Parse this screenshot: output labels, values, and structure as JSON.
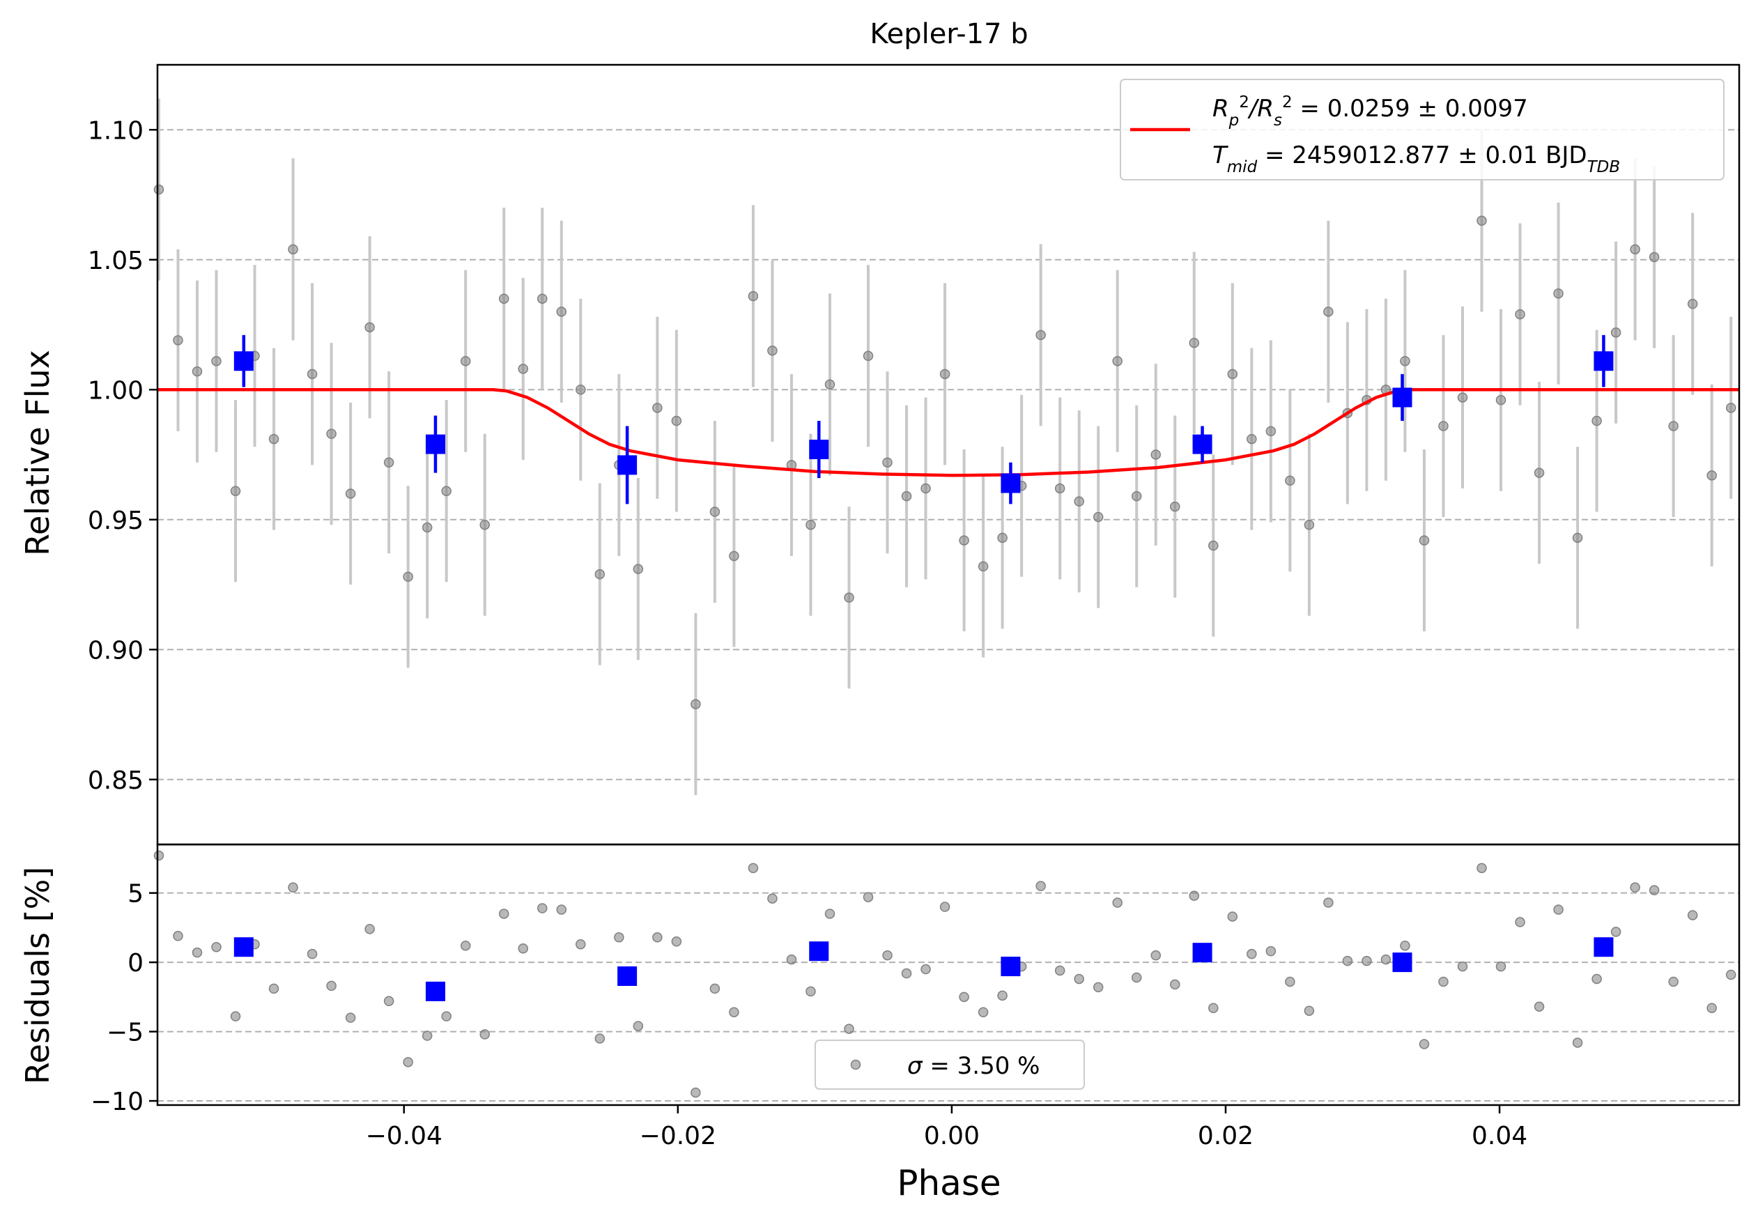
{
  "chart_data": [
    {
      "type": "scatter",
      "title": "Kepler-17 b",
      "xlabel": "",
      "ylabel": "Relative Flux",
      "xlim": [
        -0.058,
        0.0575
      ],
      "ylim": [
        0.825,
        1.125
      ],
      "yticks": [
        0.85,
        0.9,
        0.95,
        1.0,
        1.05,
        1.1
      ],
      "ytick_labels": [
        "0.85",
        "0.90",
        "0.95",
        "1.00",
        "1.05",
        "1.10"
      ],
      "grid": "horizontal dashed",
      "legend_position": "top-right",
      "legend": {
        "line1": {
          "pre": "R",
          "sub1": "p",
          "sup1": "2",
          "mid": "/R",
          "sub2": "s",
          "sup2": "2",
          "post": " = 0.0259 ± 0.0097"
        },
        "line2": {
          "pre": "T",
          "sub1": "mid",
          "mid": " = 2459012.877 ± 0.01 BJD",
          "sub2": "TDB"
        }
      },
      "colors": {
        "data": "#808080",
        "errorbar": "#c8c8c8",
        "binned": "#0000ff",
        "model": "#ff0000",
        "grid": "#b0b0b0"
      },
      "series": [
        {
          "kind": "raw_data_with_errors",
          "x": [
            -0.0579,
            -0.0565,
            -0.0551,
            -0.0537,
            -0.0523,
            -0.0509,
            -0.0495,
            -0.0481,
            -0.0467,
            -0.0453,
            -0.0439,
            -0.0425,
            -0.0411,
            -0.0397,
            -0.0383,
            -0.0369,
            -0.0355,
            -0.0341,
            -0.0327,
            -0.0313,
            -0.0299,
            -0.0285,
            -0.0271,
            -0.0257,
            -0.0243,
            -0.0229,
            -0.0215,
            -0.0201,
            -0.0187,
            -0.0173,
            -0.0159,
            -0.0145,
            -0.0131,
            -0.0117,
            -0.0103,
            -0.0089,
            -0.0075,
            -0.0061,
            -0.0047,
            -0.0033,
            -0.0019,
            -0.0005,
            0.0009,
            0.0023,
            0.0037,
            0.0051,
            0.0065,
            0.0079,
            0.0093,
            0.0107,
            0.0121,
            0.0135,
            0.0149,
            0.0163,
            0.0177,
            0.0191,
            0.0205,
            0.0219,
            0.0233,
            0.0247,
            0.0261,
            0.0275,
            0.0289,
            0.0303,
            0.0317,
            0.0331,
            0.0345,
            0.0359,
            0.0373,
            0.0387,
            0.0401,
            0.0415,
            0.0429,
            0.0443,
            0.0457,
            0.0471,
            0.0485,
            0.0499,
            0.0513,
            0.0527,
            0.0541,
            0.0555,
            0.0569
          ],
          "y": [
            1.077,
            1.019,
            1.007,
            1.011,
            0.961,
            1.013,
            0.981,
            1.054,
            1.006,
            0.983,
            0.96,
            1.024,
            0.972,
            0.928,
            0.947,
            0.961,
            1.011,
            0.948,
            1.035,
            1.008,
            1.035,
            1.03,
            1.0,
            0.929,
            0.971,
            0.931,
            0.993,
            0.988,
            0.879,
            0.953,
            0.936,
            1.036,
            1.015,
            0.971,
            0.948,
            1.002,
            0.92,
            1.013,
            0.972,
            0.959,
            0.962,
            1.006,
            0.942,
            0.932,
            0.943,
            0.963,
            1.021,
            0.962,
            0.957,
            0.951,
            1.011,
            0.959,
            0.975,
            0.955,
            1.018,
            0.94,
            1.006,
            0.981,
            0.984,
            0.965,
            0.948,
            1.03,
            0.991,
            0.996,
            1.0,
            1.011,
            0.942,
            0.986,
            0.997,
            1.065,
            0.996,
            1.029,
            0.968,
            1.037,
            0.943,
            0.988,
            1.022,
            1.054,
            1.051,
            0.986,
            1.033,
            0.967,
            0.993
          ],
          "yerr": 0.035
        },
        {
          "kind": "binned",
          "x": [
            -0.0517,
            -0.0377,
            -0.0237,
            -0.0097,
            0.0043,
            0.0183,
            0.0329,
            0.0476
          ],
          "y": [
            1.011,
            0.979,
            0.971,
            0.977,
            0.964,
            0.979,
            0.997,
            1.011
          ],
          "yerr": [
            0.01,
            0.011,
            0.015,
            0.011,
            0.008,
            0.007,
            0.009,
            0.01
          ]
        },
        {
          "kind": "model",
          "x": [
            -0.058,
            -0.0335,
            -0.0325,
            -0.031,
            -0.0295,
            -0.028,
            -0.0265,
            -0.025,
            -0.0235,
            -0.02,
            -0.015,
            -0.01,
            -0.005,
            0.0,
            0.005,
            0.01,
            0.015,
            0.02,
            0.0235,
            0.025,
            0.0265,
            0.028,
            0.0295,
            0.031,
            0.0325,
            0.0335,
            0.0575
          ],
          "y": [
            1.0,
            1.0,
            0.9995,
            0.997,
            0.993,
            0.988,
            0.983,
            0.979,
            0.9765,
            0.973,
            0.9705,
            0.9685,
            0.9675,
            0.967,
            0.9673,
            0.9683,
            0.97,
            0.973,
            0.9765,
            0.979,
            0.983,
            0.988,
            0.993,
            0.997,
            0.9995,
            1.0,
            1.0
          ]
        }
      ]
    },
    {
      "type": "scatter",
      "title": "",
      "xlabel": "Phase",
      "ylabel": "Residuals [%]",
      "xlim": [
        -0.058,
        0.0575
      ],
      "ylim": [
        -10.3,
        8.5
      ],
      "yticks": [
        -10,
        -5,
        0,
        5
      ],
      "ytick_labels": [
        "−10",
        "−5",
        "0",
        "5"
      ],
      "xticks": [
        -0.04,
        -0.02,
        0.0,
        0.02,
        0.04
      ],
      "xtick_labels": [
        "−0.04",
        "−0.02",
        "0.00",
        "0.02",
        "0.04"
      ],
      "grid": "horizontal dashed",
      "legend_position": "bottom-center",
      "legend": {
        "symbol": "σ",
        "text": " = 3.50 %"
      },
      "series": [
        {
          "kind": "raw_residuals",
          "x": [
            -0.0579,
            -0.0565,
            -0.0551,
            -0.0537,
            -0.0523,
            -0.0509,
            -0.0495,
            -0.0481,
            -0.0467,
            -0.0453,
            -0.0439,
            -0.0425,
            -0.0411,
            -0.0397,
            -0.0383,
            -0.0369,
            -0.0355,
            -0.0341,
            -0.0327,
            -0.0313,
            -0.0299,
            -0.0285,
            -0.0271,
            -0.0257,
            -0.0243,
            -0.0229,
            -0.0215,
            -0.0201,
            -0.0187,
            -0.0173,
            -0.0159,
            -0.0145,
            -0.0131,
            -0.0117,
            -0.0103,
            -0.0089,
            -0.0075,
            -0.0061,
            -0.0047,
            -0.0033,
            -0.0019,
            -0.0005,
            0.0009,
            0.0023,
            0.0037,
            0.0051,
            0.0065,
            0.0079,
            0.0093,
            0.0107,
            0.0121,
            0.0135,
            0.0149,
            0.0163,
            0.0177,
            0.0191,
            0.0205,
            0.0219,
            0.0233,
            0.0247,
            0.0261,
            0.0275,
            0.0289,
            0.0303,
            0.0317,
            0.0331,
            0.0345,
            0.0359,
            0.0373,
            0.0387,
            0.0401,
            0.0415,
            0.0429,
            0.0443,
            0.0457,
            0.0471,
            0.0485,
            0.0499,
            0.0513,
            0.0527,
            0.0541,
            0.0555,
            0.0569
          ],
          "y": [
            7.7,
            1.9,
            0.7,
            1.1,
            -3.9,
            1.3,
            -1.9,
            5.4,
            0.6,
            -1.7,
            -4.0,
            2.4,
            -2.8,
            -7.2,
            -5.3,
            -3.9,
            1.2,
            -5.2,
            3.5,
            1.0,
            3.9,
            3.8,
            1.3,
            -5.5,
            1.8,
            -4.6,
            1.8,
            1.5,
            -9.4,
            -1.9,
            -3.6,
            6.8,
            4.6,
            0.2,
            -2.1,
            3.5,
            -4.8,
            4.7,
            0.5,
            -0.8,
            -0.5,
            4.0,
            -2.5,
            -3.6,
            -2.4,
            -0.3,
            5.5,
            -0.6,
            -1.2,
            -1.8,
            4.3,
            -1.1,
            0.5,
            -1.6,
            4.8,
            -3.3,
            3.3,
            0.6,
            0.8,
            -1.4,
            -3.5,
            4.3,
            0.1,
            0.1,
            0.2,
            1.2,
            -5.9,
            -1.4,
            -0.3,
            6.8,
            -0.3,
            2.9,
            -3.2,
            3.8,
            -5.8,
            -1.2,
            2.2,
            5.4,
            5.2,
            -1.4,
            3.4,
            -3.3,
            -0.9
          ]
        },
        {
          "kind": "binned",
          "x": [
            -0.0517,
            -0.0377,
            -0.0237,
            -0.0097,
            0.0043,
            0.0183,
            0.0329,
            0.0476
          ],
          "y": [
            1.1,
            -2.1,
            -1.0,
            0.8,
            -0.3,
            0.7,
            0.0,
            1.1
          ]
        }
      ]
    }
  ]
}
